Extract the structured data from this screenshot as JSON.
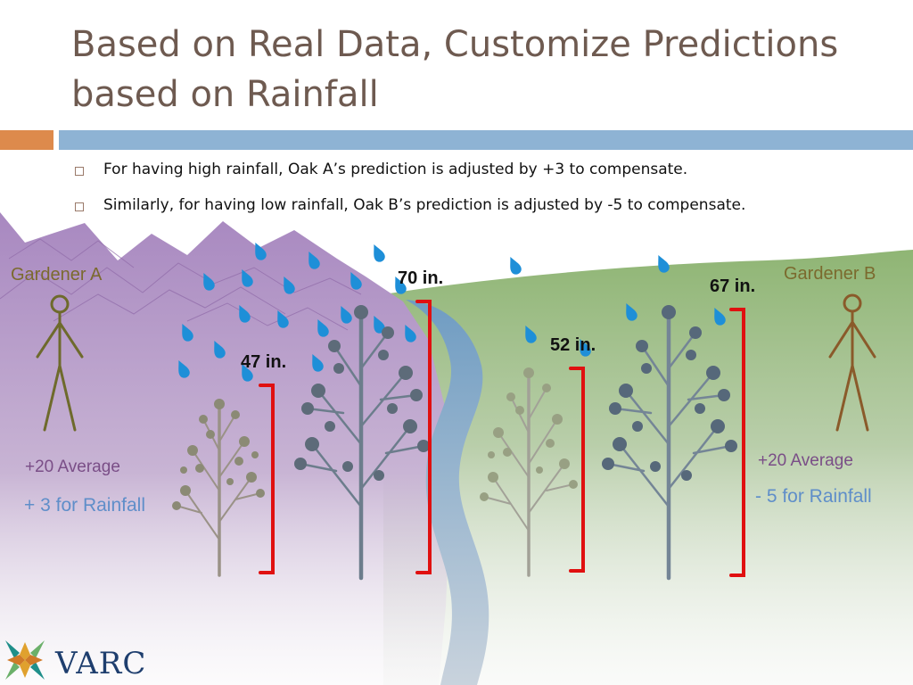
{
  "title": "Based on Real Data, Customize Predictions based on Rainfall",
  "bullets": [
    "For having high rainfall, Oak A’s prediction is adjusted by +3 to compensate.",
    "Similarly, for having low rainfall, Oak B’s prediction is adjusted by -5 to compensate."
  ],
  "gardener_a": {
    "name": "Gardener A",
    "average": "+20 Average",
    "rainfall": "+ 3 for Rainfall"
  },
  "gardener_b": {
    "name": "Gardener B",
    "average": "+20 Average",
    "rainfall": "- 5 for Rainfall"
  },
  "measurements": {
    "small_tree_a": "47 in.",
    "big_tree_a": "70 in.",
    "small_tree_b": "52 in.",
    "big_tree_b": "67 in."
  },
  "logo": {
    "text": "VARC"
  },
  "colors": {
    "title": "#6e5a50",
    "accent_orange": "#dd8a4c",
    "accent_blue": "#8eb3d4",
    "mountains": "#a888c0",
    "hill": "#93b77a",
    "river": "#7fa7c8",
    "bracket": "#e01010",
    "raindrop": "#1e8fd8"
  }
}
